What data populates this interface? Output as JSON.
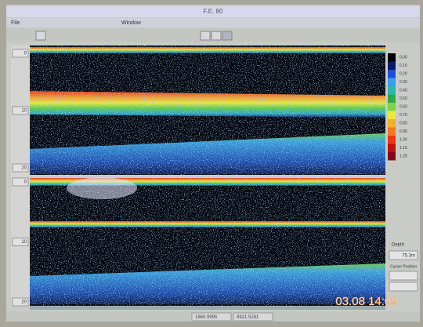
{
  "window": {
    "title": "F.E. 80",
    "menu": [
      "File",
      "Window"
    ]
  },
  "depth_scale": {
    "upper": [
      "0",
      "10",
      "20"
    ],
    "lower": [
      "0",
      "10",
      "20"
    ]
  },
  "color_scale": {
    "labels": [
      "0.00",
      "0.10",
      "0.20",
      "0.30",
      "0.40",
      "0.50",
      "0.60",
      "0.70",
      "0.80",
      "0.90",
      "1.00",
      "1.10",
      "1.20"
    ],
    "colors": [
      "#000000",
      "#0a1a6a",
      "#1f4fd8",
      "#3aa0e8",
      "#2fb8a8",
      "#2ea84a",
      "#7cd44a",
      "#e8e840",
      "#f0b030",
      "#f07a20",
      "#e83818",
      "#c01010",
      "#800818"
    ]
  },
  "side_panel": {
    "depth_label": "Depth",
    "depth_value": "75.3m",
    "cursor_label": "Cursor Position"
  },
  "timestamp": "03.08 14:09",
  "status_bar": [
    "1860.9995",
    "8921.5281"
  ]
}
